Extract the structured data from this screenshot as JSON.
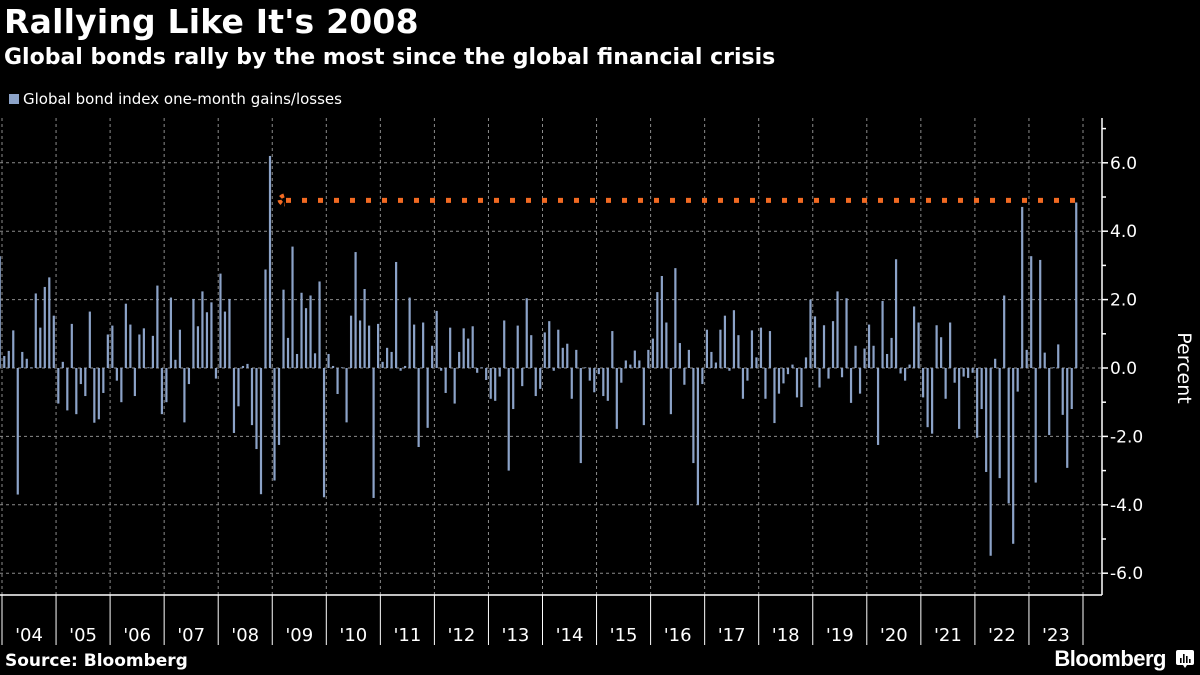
{
  "header": {
    "title": "Rallying Like It's 2008",
    "subtitle": "Global bonds rally by the most since the global financial crisis"
  },
  "footer": {
    "source": "Source: Bloomberg",
    "brand": "Bloomberg"
  },
  "colors": {
    "bar": "#8ca3c8",
    "reference_line": "#f26a22",
    "background": "#000000",
    "grid": "#8c8c8c"
  },
  "chart_data": {
    "type": "bar",
    "title": "Rallying Like It's 2008",
    "subtitle": "Global bonds rally by the most since the global financial crisis",
    "xlabel": "",
    "ylabel": "Percent",
    "ylim": [
      -6.7,
      7.3
    ],
    "yticks": [
      6.0,
      4.0,
      2.0,
      0.0,
      -2.0,
      -4.0,
      -6.0
    ],
    "ytick_labels": [
      "6.0",
      "4.0",
      "2.0",
      "0.0",
      "-2.0",
      "-4.0",
      "-6.0"
    ],
    "xtick_labels": [
      "'04",
      "'05",
      "'06",
      "'07",
      "'08",
      "'09",
      "'10",
      "'11",
      "'12",
      "'13",
      "'14",
      "'15",
      "'16",
      "'17",
      "'18",
      "'19",
      "'20",
      "'21",
      "'22",
      "'23"
    ],
    "grid": true,
    "legend": {
      "position": "top-left",
      "entries": [
        "Global bond index one-month gains/losses"
      ]
    },
    "x_start": "2003-12",
    "x_end": "2023-11",
    "frequency": "monthly",
    "series": [
      {
        "name": "Global bond index one-month gains/losses",
        "values": [
          3.27,
          0.35,
          0.5,
          1.1,
          -3.7,
          0.47,
          0.27,
          0.02,
          2.18,
          1.18,
          2.37,
          2.65,
          1.53,
          -1.04,
          0.18,
          -1.24,
          1.29,
          -1.35,
          -0.47,
          -0.82,
          1.65,
          -1.6,
          -1.5,
          -0.73,
          0.98,
          1.24,
          -0.37,
          -1.0,
          1.88,
          1.27,
          -0.82,
          0.98,
          1.16,
          0.02,
          0.94,
          2.41,
          -1.35,
          -1.0,
          2.06,
          0.24,
          1.12,
          -1.59,
          -0.47,
          2.02,
          1.22,
          2.24,
          1.63,
          1.92,
          -0.31,
          2.76,
          1.65,
          2.02,
          -1.9,
          -1.12,
          0.06,
          0.12,
          -1.67,
          -2.37,
          -3.69,
          2.88,
          6.2,
          -3.29,
          -2.25,
          2.29,
          0.88,
          3.55,
          0.41,
          2.2,
          1.75,
          2.12,
          0.43,
          2.53,
          -3.78,
          0.41,
          0.06,
          -0.76,
          0.02,
          -1.59,
          1.53,
          3.39,
          1.39,
          2.31,
          1.24,
          -3.8,
          1.29,
          0.18,
          0.59,
          0.47,
          3.1,
          -0.08,
          0.06,
          2.06,
          1.27,
          -2.31,
          1.33,
          -1.75,
          0.65,
          1.67,
          -0.08,
          -0.73,
          1.18,
          -1.04,
          0.47,
          1.16,
          0.86,
          1.22,
          -0.14,
          0.02,
          -0.35,
          -0.9,
          -0.96,
          -0.25,
          1.39,
          -3.0,
          -1.2,
          1.24,
          -0.53,
          2.04,
          0.96,
          -0.82,
          -0.61,
          1.04,
          1.37,
          -0.08,
          1.12,
          0.59,
          0.71,
          -0.9,
          0.53,
          -2.78,
          0.02,
          -0.37,
          -0.71,
          -0.18,
          -0.82,
          -0.96,
          1.08,
          -1.78,
          -0.43,
          0.22,
          0.1,
          0.51,
          0.22,
          -1.67,
          0.53,
          0.86,
          2.22,
          2.69,
          1.33,
          -1.35,
          2.92,
          0.73,
          -0.49,
          0.53,
          -2.78,
          -4.0,
          -0.47,
          1.12,
          0.47,
          0.16,
          1.12,
          1.53,
          -0.08,
          1.69,
          0.96,
          -0.9,
          -0.37,
          1.1,
          0.31,
          1.18,
          -0.9,
          1.08,
          -1.61,
          -0.75,
          -0.45,
          -0.18,
          0.1,
          -0.86,
          -1.14,
          0.31,
          2.0,
          1.51,
          -0.57,
          1.25,
          -0.31,
          1.37,
          2.24,
          -0.27,
          2.04,
          -1.02,
          0.65,
          -0.75,
          0.57,
          1.27,
          0.65,
          -2.25,
          1.96,
          0.41,
          0.88,
          3.18,
          -0.16,
          -0.37,
          0.1,
          1.8,
          1.33,
          -0.86,
          -1.73,
          -1.92,
          1.25,
          0.9,
          -0.9,
          1.33,
          -0.43,
          -1.78,
          -0.25,
          -0.29,
          -0.14,
          -2.04,
          -1.2,
          -3.04,
          -5.49,
          0.27,
          -3.22,
          2.12,
          -3.96,
          -5.14,
          -0.69,
          4.71,
          0.53,
          3.27,
          -3.35,
          3.16,
          0.45,
          -1.96,
          0.02,
          0.69,
          -1.37,
          -2.92,
          -1.2,
          4.84
        ]
      }
    ],
    "annotations": [
      {
        "type": "horizontal-dotted-line",
        "value": 4.9,
        "from": "2008-12",
        "to": "2023-11",
        "description": "Reference level matching the Nov 2023 rally, extended back to the 2008 peak"
      }
    ]
  }
}
